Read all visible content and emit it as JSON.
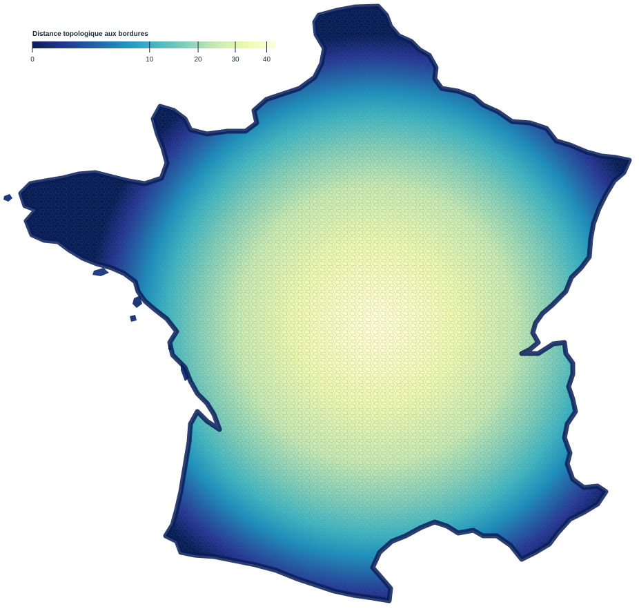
{
  "legend": {
    "title": "Distance topologique aux bordures",
    "domain": [
      0,
      43
    ],
    "ticks": [
      {
        "value": 0,
        "label": "0"
      },
      {
        "value": 10,
        "label": "10"
      },
      {
        "value": 20,
        "label": "20"
      },
      {
        "value": 30,
        "label": "30"
      },
      {
        "value": 40,
        "label": "40"
      }
    ],
    "scale": "sqrt",
    "color_scheme": "YlGnBu (reversed)"
  },
  "colors": {
    "ramp": [
      "#081d58",
      "#253494",
      "#225ea8",
      "#1d91c0",
      "#41b6c4",
      "#7fcdbb",
      "#c7e9b4",
      "#edf8b1",
      "#ffffd9"
    ],
    "cell_stroke": "#5c6b55",
    "background": "#ffffff"
  },
  "map": {
    "subject": "France métropolitaine",
    "unit_boundaries": "communes"
  }
}
